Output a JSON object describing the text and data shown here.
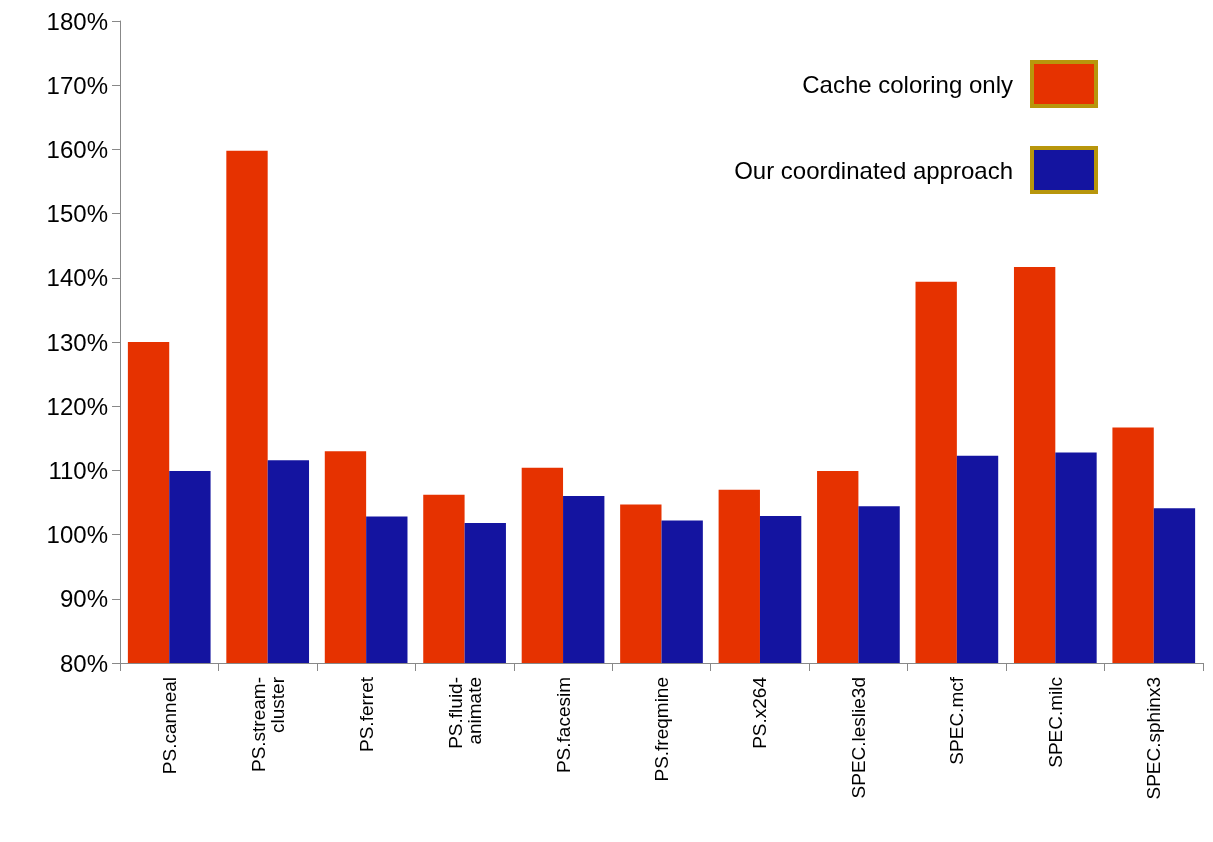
{
  "chart_data": {
    "type": "bar",
    "categories": [
      "PS.canneal",
      "PS.stream-cluster",
      "PS.ferret",
      "PS.fluid-animate",
      "PS.facesim",
      "PS.freqmine",
      "PS.x264",
      "SPEC.leslie3d",
      "SPEC.mcf",
      "SPEC.milc",
      "SPEC.sphinx3"
    ],
    "series": [
      {
        "name": "Cache coloring only",
        "color": "#e63200",
        "values": [
          130.0,
          159.8,
          113.0,
          106.2,
          110.4,
          104.7,
          107.0,
          109.9,
          139.4,
          141.7,
          116.7
        ]
      },
      {
        "name": "Our coordinated approach",
        "color": "#1414a0",
        "values": [
          109.9,
          111.6,
          102.8,
          101.8,
          106.0,
          102.2,
          102.9,
          104.4,
          112.3,
          112.8,
          104.1
        ]
      }
    ],
    "ylim": [
      80,
      180
    ],
    "yticks": [
      {
        "value": 80,
        "label": "80%"
      },
      {
        "value": 90,
        "label": "90%"
      },
      {
        "value": 100,
        "label": "100%"
      },
      {
        "value": 110,
        "label": "110%"
      },
      {
        "value": 120,
        "label": "120%"
      },
      {
        "value": 130,
        "label": "130%"
      },
      {
        "value": 140,
        "label": "140%"
      },
      {
        "value": 150,
        "label": "150%"
      },
      {
        "value": 160,
        "label": "160%"
      },
      {
        "value": 170,
        "label": "170%"
      },
      {
        "value": 180,
        "label": "180%"
      }
    ],
    "grid": false,
    "legend": "top right"
  }
}
